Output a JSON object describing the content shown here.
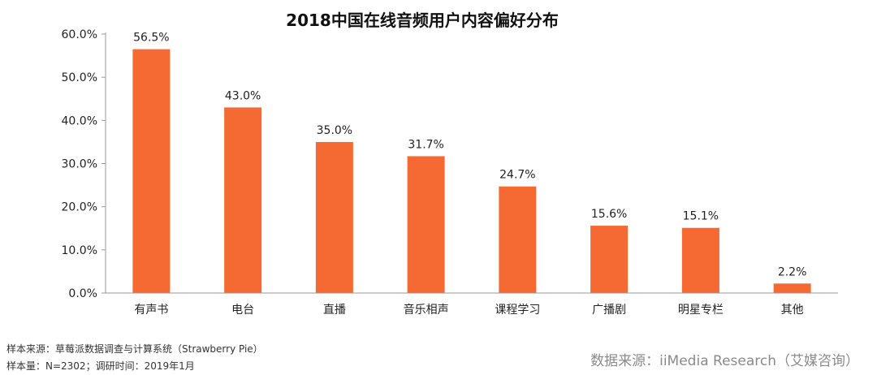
{
  "colors": {
    "bar": "#F56A33",
    "axis": "#999999",
    "text": "#222222"
  },
  "chart_data": {
    "type": "bar",
    "title": "2018中国在线音频用户内容偏好分布",
    "categories": [
      "有声书",
      "电台",
      "直播",
      "音乐相声",
      "课程学习",
      "广播剧",
      "明星专栏",
      "其他"
    ],
    "values": [
      56.5,
      43.0,
      35.0,
      31.7,
      24.7,
      15.6,
      15.1,
      2.2
    ],
    "data_labels": [
      "56.5%",
      "43.0%",
      "35.0%",
      "31.7%",
      "24.7%",
      "15.6%",
      "15.1%",
      "2.2%"
    ],
    "yticks": [
      0,
      10,
      20,
      30,
      40,
      50,
      60
    ],
    "ytick_labels": [
      "0.0%",
      "10.0%",
      "20.0%",
      "30.0%",
      "40.0%",
      "50.0%",
      "60.0%"
    ],
    "ylim": [
      0,
      60
    ],
    "xlabel": "",
    "ylabel": "",
    "grid": false
  },
  "footer": {
    "sample_source": "样本来源：草莓派数据调查与计算系统（Strawberry Pie）",
    "sample_size": "样本量：N=2302；调研时间：2019年1月",
    "data_source": "数据来源：iiMedia Research（艾媒咨询）"
  }
}
